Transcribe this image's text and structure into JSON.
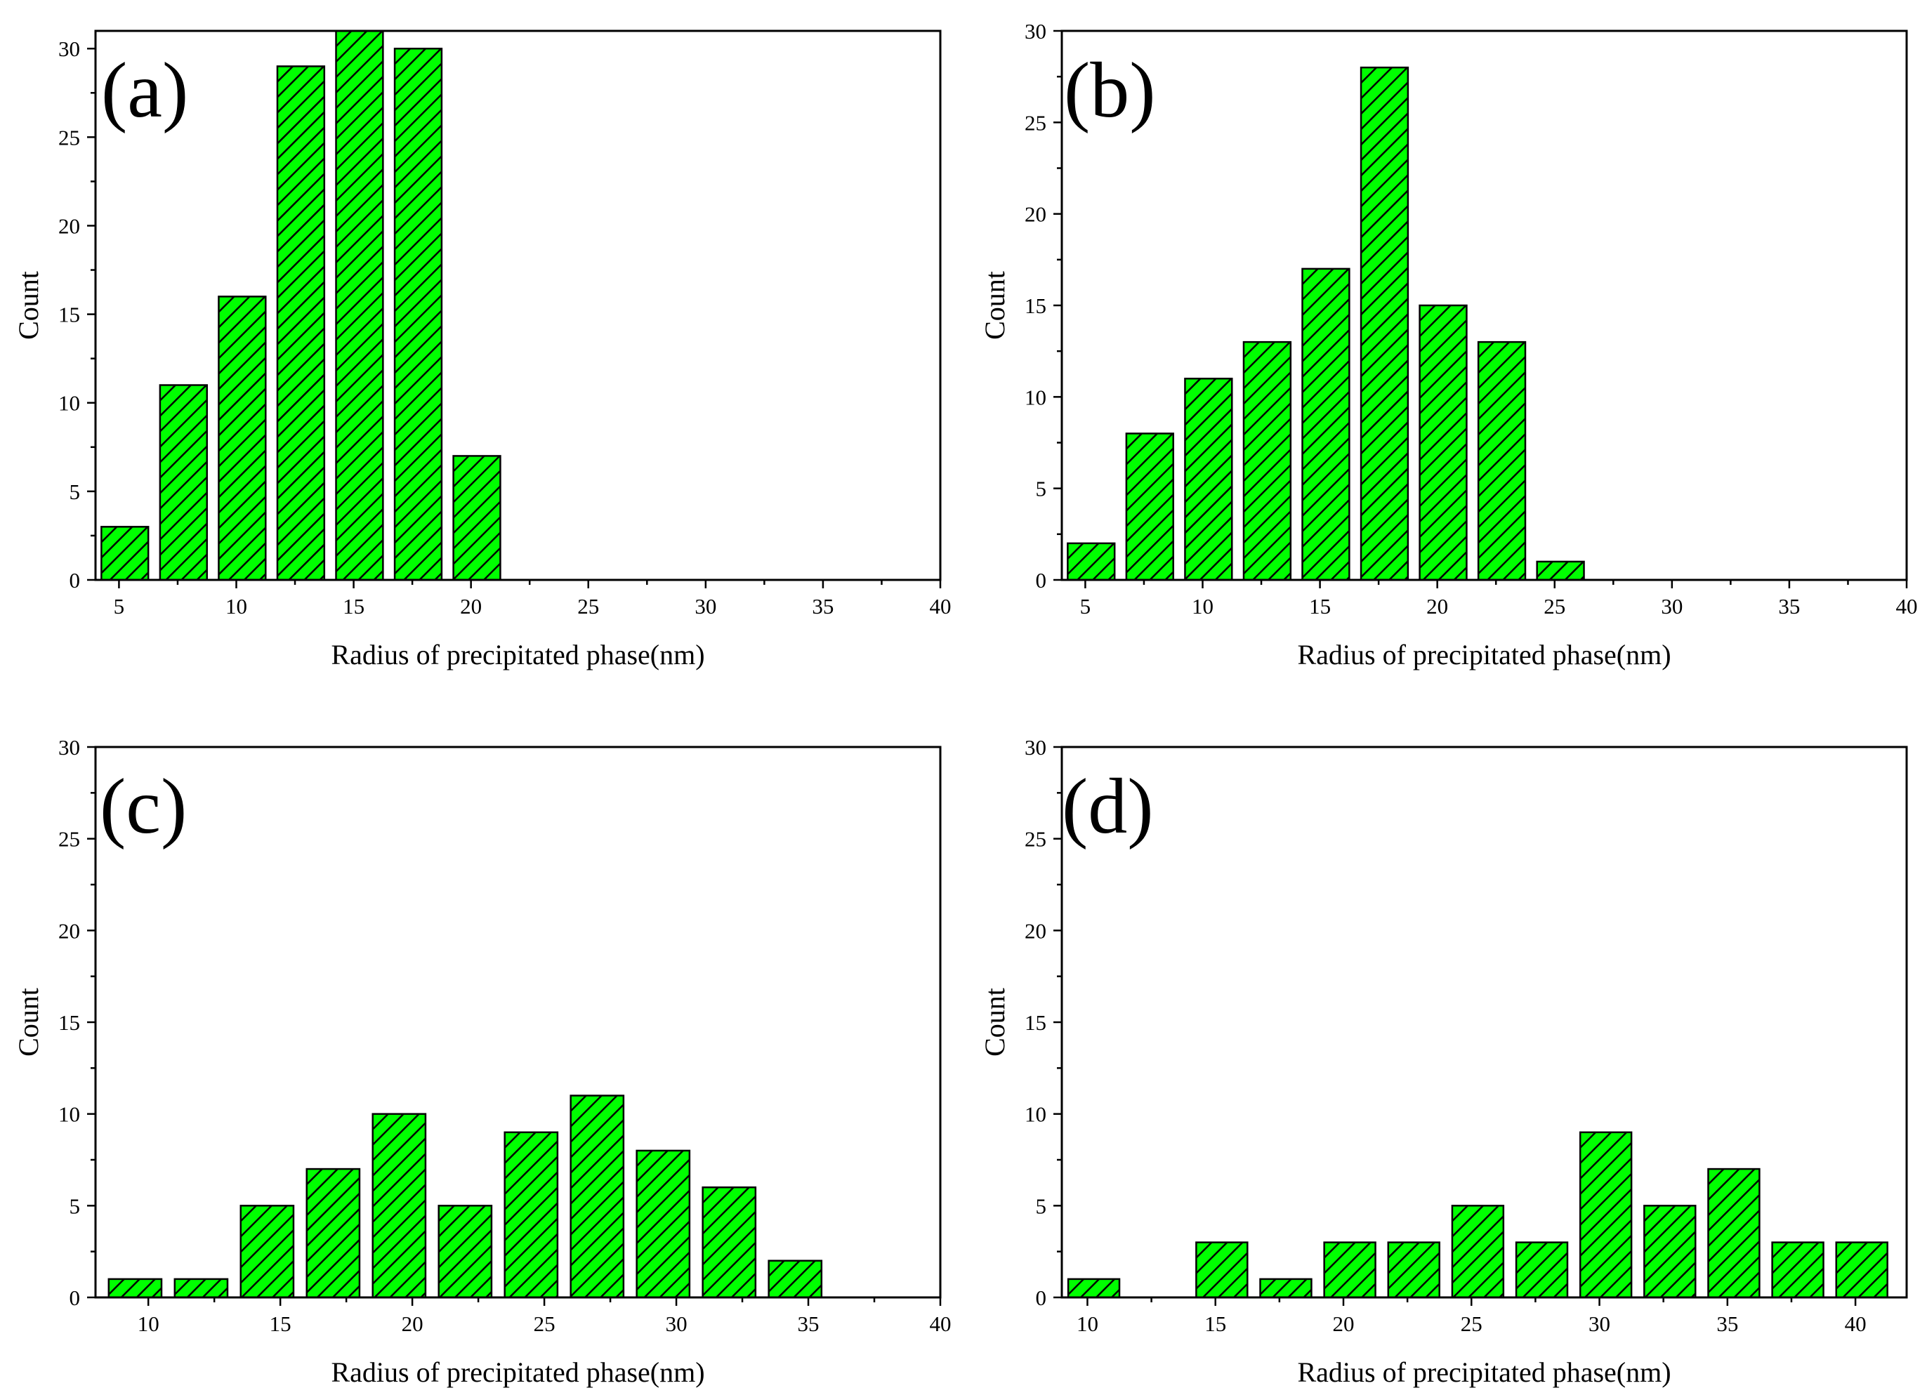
{
  "figure": {
    "bar_color": "#00ff00",
    "hatch_color": "#000000",
    "frame_color": "#000000"
  },
  "chart_data": [
    {
      "panel": "(a)",
      "type": "bar",
      "title": "",
      "xlabel": "Radius of precipitated phase(nm)",
      "ylabel": "Count",
      "xlim": [
        4,
        40
      ],
      "ylim": [
        0,
        31
      ],
      "xticks": [
        5,
        10,
        15,
        20,
        25,
        30,
        35,
        40
      ],
      "yticks": [
        0,
        5,
        10,
        15,
        20,
        25,
        30
      ],
      "x": [
        5.25,
        7.75,
        10.25,
        12.75,
        15.25,
        17.75,
        20.25
      ],
      "values": [
        3,
        11,
        16,
        29,
        31,
        30,
        7
      ],
      "bar_width": 2.0
    },
    {
      "panel": "(b)",
      "type": "bar",
      "title": "",
      "xlabel": "Radius of precipitated phase(nm)",
      "ylabel": "Count",
      "xlim": [
        4,
        40
      ],
      "ylim": [
        0,
        30
      ],
      "xticks": [
        5,
        10,
        15,
        20,
        25,
        30,
        35,
        40
      ],
      "yticks": [
        0,
        5,
        10,
        15,
        20,
        25,
        30
      ],
      "x": [
        5.25,
        7.75,
        10.25,
        12.75,
        15.25,
        17.75,
        20.25,
        22.75,
        25.25
      ],
      "values": [
        2,
        8,
        11,
        13,
        17,
        28,
        15,
        13,
        1
      ],
      "bar_width": 2.0
    },
    {
      "panel": "(c)",
      "type": "bar",
      "title": "",
      "xlabel": "Radius of precipitated phase(nm)",
      "ylabel": "Count",
      "xlim": [
        8,
        40
      ],
      "ylim": [
        0,
        30
      ],
      "xticks": [
        10,
        15,
        20,
        25,
        30,
        35,
        40
      ],
      "yticks": [
        0,
        5,
        10,
        15,
        20,
        25,
        30
      ],
      "x": [
        9.5,
        12,
        14.5,
        17,
        19.5,
        22,
        24.5,
        27,
        29.5,
        32,
        34.5
      ],
      "values": [
        1,
        1,
        5,
        7,
        10,
        5,
        9,
        11,
        8,
        6,
        2
      ],
      "bar_width": 2.0
    },
    {
      "panel": "(d)",
      "type": "bar",
      "title": "",
      "xlabel": "Radius of precipitated phase(nm)",
      "ylabel": "Count",
      "xlim": [
        9,
        42
      ],
      "ylim": [
        0,
        30
      ],
      "xticks": [
        10,
        15,
        20,
        25,
        30,
        35,
        40
      ],
      "yticks": [
        0,
        5,
        10,
        15,
        20,
        25,
        30
      ],
      "x": [
        10.25,
        12.75,
        15.25,
        17.75,
        20.25,
        22.75,
        25.25,
        27.75,
        30.25,
        32.75,
        35.25,
        37.75,
        40.25
      ],
      "values": [
        1,
        0,
        3,
        1,
        3,
        3,
        5,
        3,
        9,
        5,
        7,
        3,
        3
      ],
      "bar_width": 2.0
    }
  ]
}
